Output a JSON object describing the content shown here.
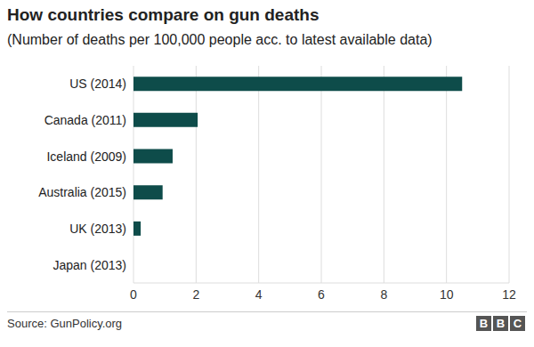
{
  "chart_data": {
    "type": "bar",
    "title": "How countries compare on gun deaths",
    "subtitle": "(Number of deaths per 100,000 people acc. to latest available data)",
    "categories": [
      "US (2014)",
      "Canada (2011)",
      "Iceland (2009)",
      "Australia (2015)",
      "UK (2013)",
      "Japan (2013)"
    ],
    "values": [
      10.5,
      2.05,
      1.25,
      0.93,
      0.23,
      0
    ],
    "color": "#0e4c4a",
    "orientation": "horizontal",
    "xlim": [
      0,
      12
    ],
    "xticks": [
      0,
      2,
      4,
      6,
      8,
      10,
      12
    ],
    "grid": true,
    "data_labels": false,
    "source": "Source: GunPolicy.org",
    "logo": "BBC"
  }
}
